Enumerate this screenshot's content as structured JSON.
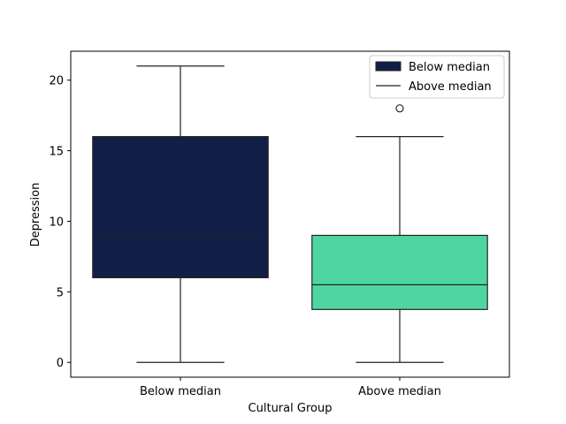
{
  "chart_data": {
    "type": "box",
    "categories": [
      "Below median",
      "Above median"
    ],
    "xlabel": "Cultural Group",
    "ylabel": "Depression",
    "ylim": [
      -1.05,
      22.05
    ],
    "yticks": [
      0,
      5,
      10,
      15,
      20
    ],
    "grid": false,
    "legend_placement": "top-right",
    "legend": [
      {
        "label": "Below median",
        "marker": "patch",
        "color": "#111f46"
      },
      {
        "label": "Above median",
        "marker": "line",
        "color": "#222222"
      }
    ],
    "boxes": [
      {
        "category": "Below median",
        "whisker_low": 0,
        "q1": 6,
        "median": 9,
        "q3": 16,
        "whisker_high": 21,
        "outliers": [],
        "color": "#111f46"
      },
      {
        "category": "Above median",
        "whisker_low": 0,
        "q1": 3.75,
        "median": 5.5,
        "q3": 9,
        "whisker_high": 16,
        "outliers": [
          18
        ],
        "color": "#4fd6a0"
      }
    ]
  }
}
